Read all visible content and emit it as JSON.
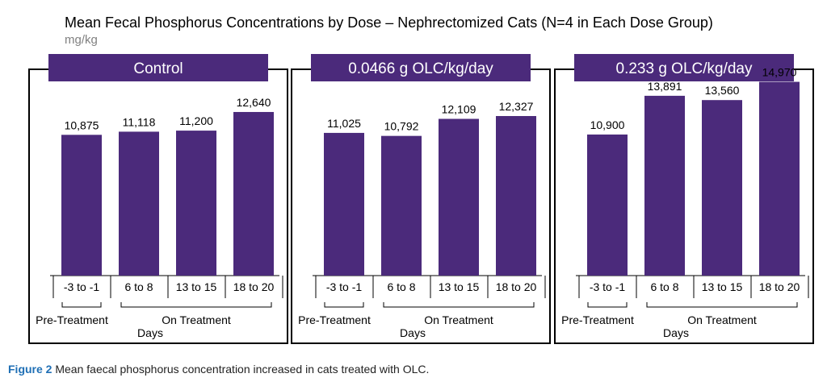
{
  "figure": {
    "title": "Mean Fecal Phosphorus Concentrations by Dose – Nephrectomized Cats (N=4 in Each Dose Group)",
    "unit": "mg/kg",
    "caption_label": "Figure 2",
    "caption_text": " Mean faecal phosphorus concentration increased in cats treated with OLC.",
    "pre_treatment_label": "Pre-Treatment",
    "on_treatment_label": "On Treatment",
    "days_label": "Days"
  },
  "colors": {
    "bar": "#4b2a7b",
    "header": "#4b2a7b",
    "caption_label": "#1f6fb5",
    "unit_text": "#808080"
  },
  "chart_data": [
    {
      "type": "bar",
      "title": "Control",
      "xlabel": "Days",
      "ylabel": "",
      "categories": [
        "-3 to -1",
        "6 to 8",
        "13 to 15",
        "18 to 20"
      ],
      "values": [
        10875,
        11118,
        11200,
        12640
      ],
      "value_labels": [
        "10,875",
        "11,118",
        "11,200",
        "12,640"
      ],
      "ylim": [
        0,
        16000
      ]
    },
    {
      "type": "bar",
      "title": "0.0466 g OLC/kg/day",
      "xlabel": "Days",
      "ylabel": "",
      "categories": [
        "-3 to -1",
        "6 to 8",
        "13 to 15",
        "18 to 20"
      ],
      "values": [
        11025,
        10792,
        12109,
        12327
      ],
      "value_labels": [
        "11,025",
        "10,792",
        "12,109",
        "12,327"
      ],
      "ylim": [
        0,
        16000
      ]
    },
    {
      "type": "bar",
      "title": "0.233 g OLC/kg/day",
      "xlabel": "Days",
      "ylabel": "",
      "categories": [
        "-3 to -1",
        "6 to 8",
        "13 to 15",
        "18 to 20"
      ],
      "values": [
        10900,
        13891,
        13560,
        14970
      ],
      "value_labels": [
        "10,900",
        "13,891",
        "13,560",
        "14,970"
      ],
      "ylim": [
        0,
        16000
      ]
    }
  ]
}
